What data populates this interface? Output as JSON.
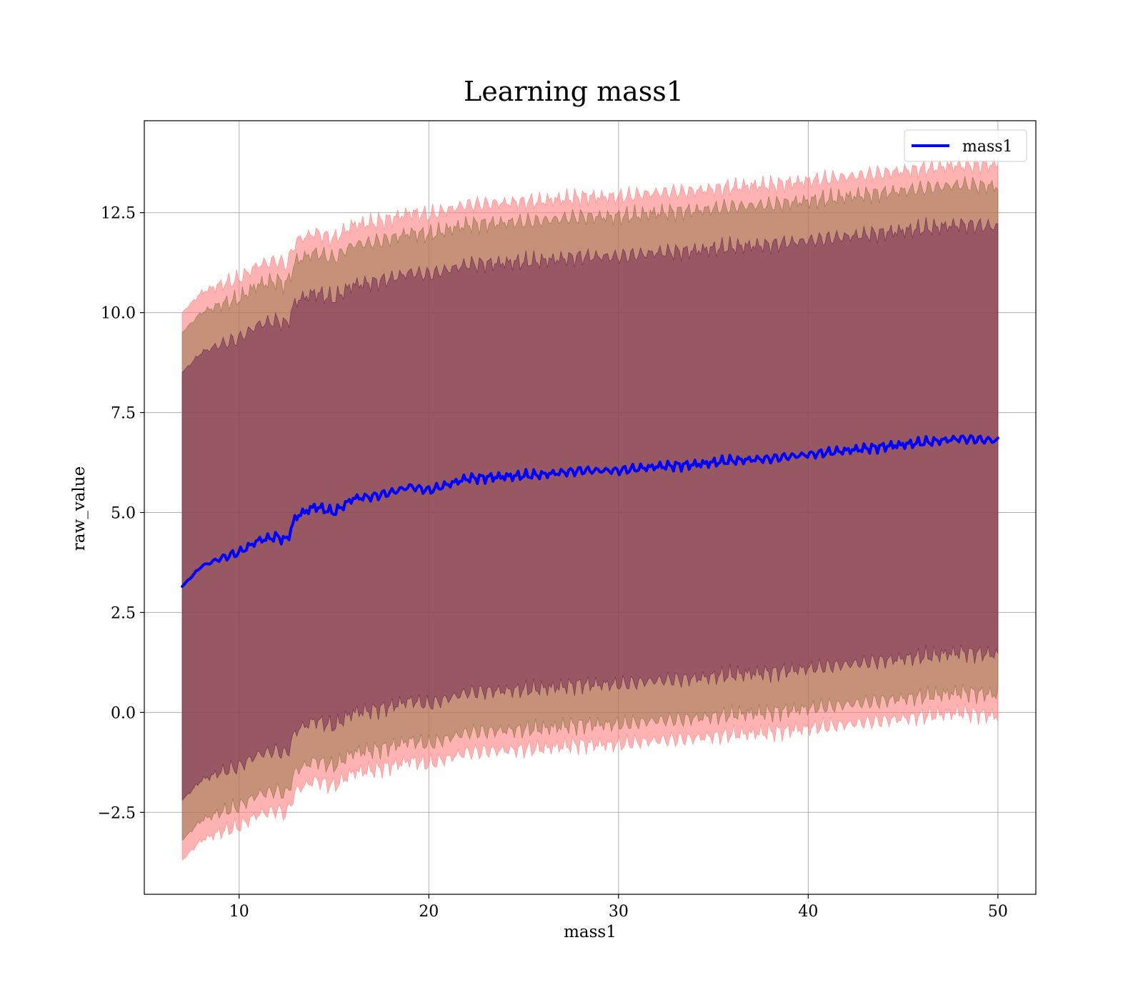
{
  "chart_data": {
    "type": "area",
    "title": "Learning mass1",
    "xlabel": "mass1",
    "ylabel": "raw_value",
    "xlim": [
      5,
      52
    ],
    "ylim": [
      -4.55,
      14.8
    ],
    "grid": true,
    "legend_position": "top-right",
    "x_ticks": [
      {
        "value": 10,
        "label": "10"
      },
      {
        "value": 20,
        "label": "20"
      },
      {
        "value": 30,
        "label": "30"
      },
      {
        "value": 40,
        "label": "40"
      },
      {
        "value": 50,
        "label": "50"
      }
    ],
    "y_ticks": [
      {
        "value": -2.5,
        "label": "−2.5"
      },
      {
        "value": 0.0,
        "label": "0.0"
      },
      {
        "value": 2.5,
        "label": "2.5"
      },
      {
        "value": 5.0,
        "label": "5.0"
      },
      {
        "value": 7.5,
        "label": "7.5"
      },
      {
        "value": 10.0,
        "label": "10.0"
      },
      {
        "value": 12.5,
        "label": "12.5"
      }
    ],
    "x": [
      7,
      8,
      9,
      10,
      11,
      12,
      12.5,
      13,
      14,
      15,
      16,
      17,
      18,
      19,
      20,
      22,
      24,
      26,
      28,
      30,
      32,
      34,
      36,
      38,
      40,
      42,
      44,
      46,
      48,
      50
    ],
    "series": [
      {
        "name": "mass1",
        "color": "#0000ff",
        "values": [
          3.15,
          3.65,
          3.85,
          4.0,
          4.3,
          4.4,
          4.3,
          4.9,
          5.15,
          5.0,
          5.35,
          5.4,
          5.5,
          5.65,
          5.55,
          5.85,
          5.9,
          5.95,
          6.05,
          6.05,
          6.15,
          6.2,
          6.3,
          6.35,
          6.45,
          6.55,
          6.65,
          6.75,
          6.85,
          6.8
        ]
      }
    ],
    "bands": [
      {
        "color": "#ff7f7f",
        "upper": [
          10.0,
          10.5,
          10.7,
          10.85,
          11.2,
          11.3,
          11.2,
          11.8,
          12.0,
          11.85,
          12.2,
          12.25,
          12.35,
          12.5,
          12.45,
          12.7,
          12.75,
          12.8,
          12.9,
          12.9,
          13.0,
          13.05,
          13.15,
          13.2,
          13.3,
          13.4,
          13.5,
          13.6,
          13.7,
          13.7
        ],
        "lower": [
          -3.7,
          -3.2,
          -3.0,
          -2.85,
          -2.55,
          -2.45,
          -2.55,
          -1.95,
          -1.7,
          -1.85,
          -1.5,
          -1.45,
          -1.35,
          -1.2,
          -1.3,
          -1.0,
          -0.95,
          -0.9,
          -0.8,
          -0.8,
          -0.7,
          -0.65,
          -0.55,
          -0.5,
          -0.4,
          -0.3,
          -0.2,
          -0.1,
          0.0,
          -0.1
        ]
      },
      {
        "color": "#8c7040",
        "upper": [
          9.5,
          10.0,
          10.2,
          10.35,
          10.7,
          10.8,
          10.7,
          11.3,
          11.5,
          11.35,
          11.7,
          11.75,
          11.85,
          12.0,
          11.95,
          12.2,
          12.25,
          12.3,
          12.4,
          12.4,
          12.5,
          12.55,
          12.65,
          12.7,
          12.8,
          12.9,
          13.0,
          13.1,
          13.2,
          13.15
        ],
        "lower": [
          -3.2,
          -2.7,
          -2.5,
          -2.35,
          -2.05,
          -1.95,
          -2.05,
          -1.45,
          -1.2,
          -1.35,
          -1.0,
          -0.95,
          -0.85,
          -0.7,
          -0.8,
          -0.5,
          -0.45,
          -0.4,
          -0.3,
          -0.3,
          -0.2,
          -0.15,
          -0.05,
          0.0,
          0.1,
          0.2,
          0.3,
          0.4,
          0.5,
          0.45
        ]
      },
      {
        "color": "#6a1f4f",
        "upper": [
          8.5,
          9.0,
          9.2,
          9.35,
          9.7,
          9.8,
          9.7,
          10.3,
          10.5,
          10.35,
          10.7,
          10.75,
          10.85,
          11.0,
          10.95,
          11.2,
          11.25,
          11.3,
          11.4,
          11.4,
          11.5,
          11.55,
          11.65,
          11.7,
          11.8,
          11.9,
          12.0,
          12.1,
          12.2,
          12.15
        ],
        "lower": [
          -2.2,
          -1.7,
          -1.5,
          -1.35,
          -1.05,
          -0.95,
          -1.05,
          -0.45,
          -0.2,
          -0.35,
          0.0,
          0.05,
          0.15,
          0.3,
          0.2,
          0.5,
          0.55,
          0.6,
          0.7,
          0.7,
          0.8,
          0.85,
          0.95,
          1.0,
          1.1,
          1.2,
          1.3,
          1.4,
          1.5,
          1.45
        ]
      }
    ]
  }
}
